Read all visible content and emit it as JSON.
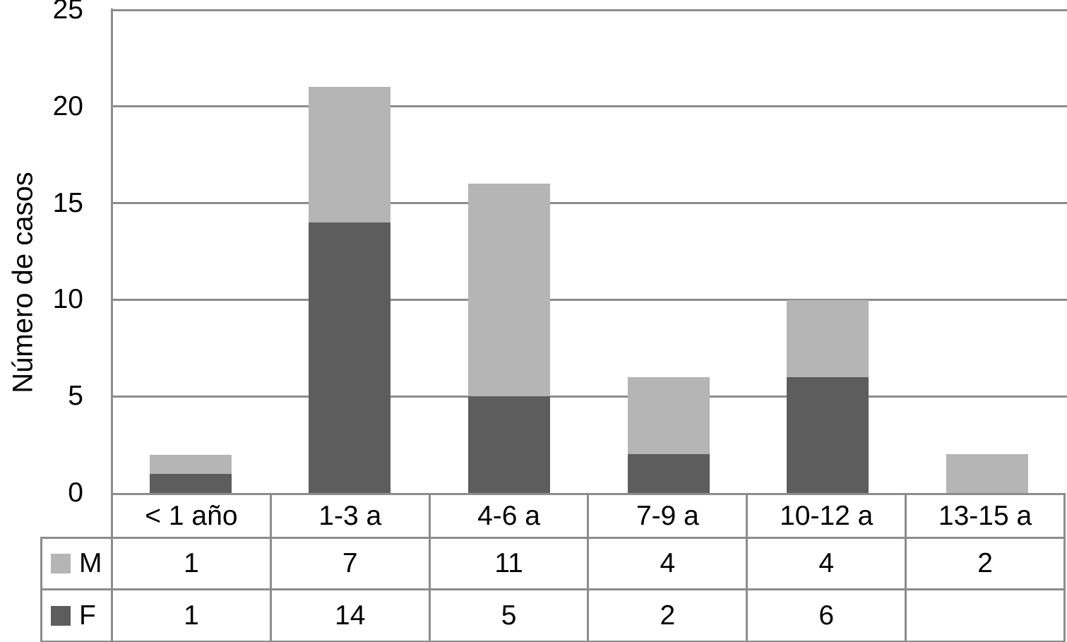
{
  "chart_data": {
    "type": "bar",
    "stacked": true,
    "title": "",
    "xlabel": "",
    "ylabel": "Número de casos",
    "categories": [
      "< 1 año",
      "1-3 a",
      "4-6 a",
      "7-9 a",
      "10-12 a",
      "13-15 a"
    ],
    "series": [
      {
        "name": "M",
        "color": "#b5b5b5",
        "values": [
          1,
          7,
          11,
          4,
          4,
          2
        ]
      },
      {
        "name": "F",
        "color": "#5d5d5d",
        "values": [
          1,
          14,
          5,
          2,
          6,
          null
        ]
      }
    ],
    "stack_order": [
      "F",
      "M"
    ],
    "ylim": [
      0,
      25
    ],
    "yticks": [
      0,
      5,
      10,
      15,
      20,
      25
    ],
    "grid": true,
    "legend_position": "table-left-column",
    "colors": {
      "axis_and_grid": "#8c8c8c",
      "table_border": "#8c8c8c",
      "text": "#000000",
      "background": "#ffffff"
    }
  }
}
